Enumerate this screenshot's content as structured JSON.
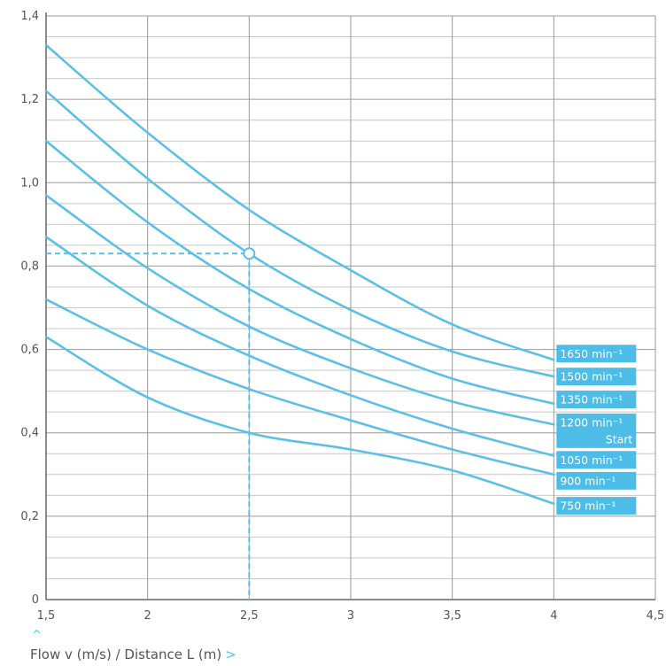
{
  "colors": {
    "curve": "#5bc0e6",
    "label_bg": "#4dbde8",
    "grid": "#c8c8c8",
    "grid_major": "#9a9a9a",
    "axis_text": "#555555"
  },
  "icons": {
    "up_marker": "caret-up-icon",
    "next_marker": "chevron-right-icon"
  },
  "xaxis": {
    "title": "Flow v (m/s) / Distance L (m)",
    "caret": "^",
    "arrow": ">"
  },
  "chart_data": {
    "type": "line",
    "xlabel": "Flow v (m/s) / Distance L (m)",
    "ylabel": "",
    "xlim": [
      1.5,
      4.5
    ],
    "ylim": [
      0,
      1.4
    ],
    "x_ticks": [
      1.5,
      2,
      2.5,
      3,
      3.5,
      4,
      4.5
    ],
    "x_tick_labels": [
      "1,5",
      "2",
      "2,5",
      "3",
      "3,5",
      "4",
      "4,5"
    ],
    "y_ticks": [
      0,
      0.2,
      0.4,
      0.6,
      0.8,
      1.0,
      1.2,
      1.4
    ],
    "y_tick_labels": [
      "0",
      "0,2",
      "0,4",
      "0,6",
      "0,8",
      "1,0",
      "1,2",
      "1,4"
    ],
    "grid": true,
    "series": [
      {
        "name": "1650 min⁻¹",
        "x": [
          1.5,
          2,
          2.5,
          3,
          3.5,
          4
        ],
        "y": [
          1.33,
          1.12,
          0.935,
          0.79,
          0.66,
          0.575
        ]
      },
      {
        "name": "1500 min⁻¹",
        "x": [
          1.5,
          2,
          2.5,
          3,
          3.5,
          4
        ],
        "y": [
          1.22,
          1.01,
          0.83,
          0.695,
          0.595,
          0.535
        ]
      },
      {
        "name": "1350 min⁻¹",
        "x": [
          1.5,
          2,
          2.5,
          3,
          3.5,
          4
        ],
        "y": [
          1.1,
          0.905,
          0.745,
          0.625,
          0.53,
          0.47
        ]
      },
      {
        "name": "1200 min⁻¹",
        "x": [
          1.5,
          2,
          2.5,
          3,
          3.5,
          4
        ],
        "y": [
          0.97,
          0.795,
          0.655,
          0.555,
          0.475,
          0.42
        ]
      },
      {
        "name": "1050 min⁻¹",
        "x": [
          1.5,
          2,
          2.5,
          3,
          3.5,
          4
        ],
        "y": [
          0.87,
          0.705,
          0.585,
          0.49,
          0.41,
          0.345
        ]
      },
      {
        "name": "900 min⁻¹",
        "x": [
          1.5,
          2,
          2.5,
          3,
          3.5,
          4
        ],
        "y": [
          0.72,
          0.6,
          0.505,
          0.43,
          0.36,
          0.3
        ]
      },
      {
        "name": "750 min⁻¹",
        "x": [
          1.5,
          2,
          2.5,
          3,
          3.5,
          4
        ],
        "y": [
          0.63,
          0.485,
          0.4,
          0.36,
          0.31,
          0.23
        ]
      }
    ],
    "legend_labels": [
      {
        "text": "1650 min⁻¹",
        "y": 0.59
      },
      {
        "text": "1500 min⁻¹",
        "y": 0.535
      },
      {
        "text": "1350 min⁻¹",
        "y": 0.48
      },
      {
        "text": "1200 min⁻¹",
        "y": 0.425
      },
      {
        "text": "Start",
        "y": 0.385
      },
      {
        "text": "1050 min⁻¹",
        "y": 0.335
      },
      {
        "text": "900 min⁻¹",
        "y": 0.285
      },
      {
        "text": "750 min⁻¹",
        "y": 0.225
      }
    ],
    "annotation": {
      "type": "operating-point",
      "x": 2.5,
      "y": 0.83
    }
  }
}
